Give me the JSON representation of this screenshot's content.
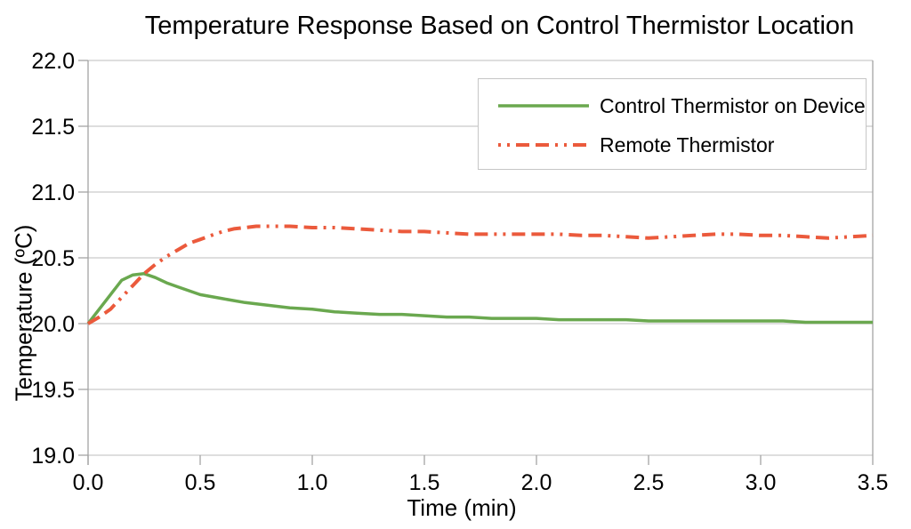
{
  "chart_data": {
    "type": "line",
    "title": "Temperature Response Based on Control Thermistor Location",
    "xlabel": "Time (min)",
    "ylabel": "Temperature (ºC)",
    "xlim": [
      0,
      3.5
    ],
    "ylim": [
      19.0,
      22.0
    ],
    "xtick_labels": [
      "0.0",
      "0.5",
      "1.0",
      "1.5",
      "2.0",
      "2.5",
      "3.0",
      "3.5"
    ],
    "ytick_labels": [
      "19.0",
      "19.5",
      "20.0",
      "20.5",
      "21.0",
      "21.5",
      "22.0"
    ],
    "grid": "horizontal-only",
    "legend_position": "top-right-inside",
    "colors": {
      "grid": "#c9c9c9",
      "axis": "#a3a3a3",
      "text": "#000000",
      "background": "#ffffff",
      "legend_border": "#c6c6c6"
    },
    "series": [
      {
        "name": "Control Thermistor on Device",
        "color": "#6aa84f",
        "style": "solid",
        "width": 3.5,
        "points": [
          [
            0,
            20.0
          ],
          [
            0.05,
            20.11
          ],
          [
            0.1,
            20.22
          ],
          [
            0.15,
            20.33
          ],
          [
            0.2,
            20.37
          ],
          [
            0.25,
            20.38
          ],
          [
            0.3,
            20.35
          ],
          [
            0.35,
            20.31
          ],
          [
            0.4,
            20.28
          ],
          [
            0.45,
            20.25
          ],
          [
            0.5,
            20.22
          ],
          [
            0.6,
            20.19
          ],
          [
            0.7,
            20.16
          ],
          [
            0.8,
            20.14
          ],
          [
            0.9,
            20.12
          ],
          [
            1.0,
            20.11
          ],
          [
            1.1,
            20.09
          ],
          [
            1.2,
            20.08
          ],
          [
            1.3,
            20.07
          ],
          [
            1.4,
            20.07
          ],
          [
            1.5,
            20.06
          ],
          [
            1.6,
            20.05
          ],
          [
            1.7,
            20.05
          ],
          [
            1.8,
            20.04
          ],
          [
            1.9,
            20.04
          ],
          [
            2.0,
            20.04
          ],
          [
            2.1,
            20.03
          ],
          [
            2.2,
            20.03
          ],
          [
            2.3,
            20.03
          ],
          [
            2.4,
            20.03
          ],
          [
            2.5,
            20.02
          ],
          [
            2.6,
            20.02
          ],
          [
            2.7,
            20.02
          ],
          [
            2.8,
            20.02
          ],
          [
            2.9,
            20.02
          ],
          [
            3.0,
            20.02
          ],
          [
            3.1,
            20.02
          ],
          [
            3.2,
            20.01
          ],
          [
            3.3,
            20.01
          ],
          [
            3.4,
            20.01
          ],
          [
            3.5,
            20.01
          ]
        ]
      },
      {
        "name": "Remote Thermistor",
        "color": "#eb5a3c",
        "style": "dash-dash-dot-dot",
        "width": 4,
        "points": [
          [
            0,
            20.0
          ],
          [
            0.05,
            20.05
          ],
          [
            0.1,
            20.11
          ],
          [
            0.15,
            20.2
          ],
          [
            0.2,
            20.29
          ],
          [
            0.25,
            20.38
          ],
          [
            0.3,
            20.45
          ],
          [
            0.35,
            20.51
          ],
          [
            0.4,
            20.56
          ],
          [
            0.45,
            20.61
          ],
          [
            0.5,
            20.64
          ],
          [
            0.55,
            20.67
          ],
          [
            0.6,
            20.7
          ],
          [
            0.65,
            20.72
          ],
          [
            0.7,
            20.73
          ],
          [
            0.75,
            20.74
          ],
          [
            0.8,
            20.74
          ],
          [
            0.9,
            20.74
          ],
          [
            1.0,
            20.73
          ],
          [
            1.1,
            20.73
          ],
          [
            1.2,
            20.72
          ],
          [
            1.3,
            20.71
          ],
          [
            1.4,
            20.7
          ],
          [
            1.5,
            20.7
          ],
          [
            1.6,
            20.69
          ],
          [
            1.7,
            20.68
          ],
          [
            1.8,
            20.68
          ],
          [
            1.9,
            20.68
          ],
          [
            2.0,
            20.68
          ],
          [
            2.1,
            20.68
          ],
          [
            2.2,
            20.67
          ],
          [
            2.3,
            20.67
          ],
          [
            2.4,
            20.66
          ],
          [
            2.5,
            20.65
          ],
          [
            2.6,
            20.66
          ],
          [
            2.7,
            20.67
          ],
          [
            2.8,
            20.68
          ],
          [
            2.9,
            20.68
          ],
          [
            3.0,
            20.67
          ],
          [
            3.1,
            20.67
          ],
          [
            3.2,
            20.66
          ],
          [
            3.3,
            20.65
          ],
          [
            3.4,
            20.66
          ],
          [
            3.5,
            20.67
          ]
        ]
      }
    ]
  }
}
